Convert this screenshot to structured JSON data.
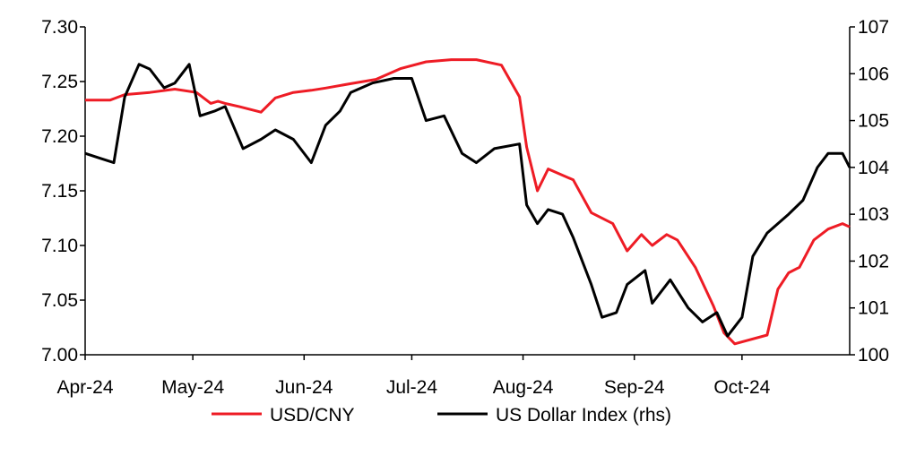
{
  "chart_data": {
    "type": "line",
    "title": "",
    "x_range": [
      "2024-04-01",
      "2024-10-31"
    ],
    "x_ticks": [
      {
        "label": "Apr-24",
        "date": "2024-04-01"
      },
      {
        "label": "May-24",
        "date": "2024-05-01"
      },
      {
        "label": "Jun-24",
        "date": "2024-06-01"
      },
      {
        "label": "Jul-24",
        "date": "2024-07-01"
      },
      {
        "label": "Aug-24",
        "date": "2024-08-01"
      },
      {
        "label": "Sep-24",
        "date": "2024-09-01"
      },
      {
        "label": "Oct-24",
        "date": "2024-10-01"
      }
    ],
    "y_left": {
      "range": [
        7.0,
        7.3
      ],
      "ticks": [
        "7.00",
        "7.05",
        "7.10",
        "7.15",
        "7.20",
        "7.25",
        "7.30"
      ]
    },
    "y_right": {
      "range": [
        100,
        107
      ],
      "ticks": [
        "100",
        "101",
        "102",
        "103",
        "104",
        "105",
        "106",
        "107"
      ]
    },
    "grid": false,
    "legend_position": "bottom",
    "series": [
      {
        "name": "USD/CNY",
        "axis": "left",
        "color": "#ee1c25",
        "points": [
          [
            "2024-04-01",
            7.233
          ],
          [
            "2024-04-08",
            7.233
          ],
          [
            "2024-04-12",
            7.238
          ],
          [
            "2024-04-19",
            7.24
          ],
          [
            "2024-04-26",
            7.243
          ],
          [
            "2024-05-02",
            7.24
          ],
          [
            "2024-05-06",
            7.23
          ],
          [
            "2024-05-08",
            7.232
          ],
          [
            "2024-05-10",
            7.23
          ],
          [
            "2024-05-14",
            7.227
          ],
          [
            "2024-05-20",
            7.222
          ],
          [
            "2024-05-24",
            7.235
          ],
          [
            "2024-05-29",
            7.24
          ],
          [
            "2024-06-03",
            7.242
          ],
          [
            "2024-06-07",
            7.244
          ],
          [
            "2024-06-14",
            7.248
          ],
          [
            "2024-06-21",
            7.252
          ],
          [
            "2024-06-28",
            7.262
          ],
          [
            "2024-07-05",
            7.268
          ],
          [
            "2024-07-12",
            7.27
          ],
          [
            "2024-07-19",
            7.27
          ],
          [
            "2024-07-26",
            7.265
          ],
          [
            "2024-07-31",
            7.236
          ],
          [
            "2024-08-02",
            7.19
          ],
          [
            "2024-08-05",
            7.15
          ],
          [
            "2024-08-08",
            7.17
          ],
          [
            "2024-08-15",
            7.16
          ],
          [
            "2024-08-20",
            7.13
          ],
          [
            "2024-08-26",
            7.12
          ],
          [
            "2024-08-30",
            7.095
          ],
          [
            "2024-09-03",
            7.11
          ],
          [
            "2024-09-06",
            7.1
          ],
          [
            "2024-09-10",
            7.11
          ],
          [
            "2024-09-13",
            7.105
          ],
          [
            "2024-09-18",
            7.08
          ],
          [
            "2024-09-23",
            7.045
          ],
          [
            "2024-09-26",
            7.02
          ],
          [
            "2024-09-29",
            7.01
          ],
          [
            "2024-10-08",
            7.018
          ],
          [
            "2024-10-11",
            7.06
          ],
          [
            "2024-10-14",
            7.075
          ],
          [
            "2024-10-17",
            7.08
          ],
          [
            "2024-10-21",
            7.105
          ],
          [
            "2024-10-25",
            7.115
          ],
          [
            "2024-10-29",
            7.12
          ],
          [
            "2024-10-31",
            7.117
          ]
        ]
      },
      {
        "name": "US Dollar Index (rhs)",
        "axis": "right",
        "color": "#000000",
        "points": [
          [
            "2024-04-01",
            104.3
          ],
          [
            "2024-04-05",
            104.2
          ],
          [
            "2024-04-09",
            104.1
          ],
          [
            "2024-04-12",
            105.5
          ],
          [
            "2024-04-16",
            106.2
          ],
          [
            "2024-04-19",
            106.1
          ],
          [
            "2024-04-23",
            105.7
          ],
          [
            "2024-04-26",
            105.8
          ],
          [
            "2024-04-30",
            106.2
          ],
          [
            "2024-05-03",
            105.1
          ],
          [
            "2024-05-07",
            105.2
          ],
          [
            "2024-05-10",
            105.3
          ],
          [
            "2024-05-15",
            104.4
          ],
          [
            "2024-05-20",
            104.6
          ],
          [
            "2024-05-24",
            104.8
          ],
          [
            "2024-05-29",
            104.6
          ],
          [
            "2024-06-03",
            104.1
          ],
          [
            "2024-06-07",
            104.9
          ],
          [
            "2024-06-11",
            105.2
          ],
          [
            "2024-06-14",
            105.6
          ],
          [
            "2024-06-20",
            105.8
          ],
          [
            "2024-06-26",
            105.9
          ],
          [
            "2024-07-01",
            105.9
          ],
          [
            "2024-07-05",
            105.0
          ],
          [
            "2024-07-10",
            105.1
          ],
          [
            "2024-07-15",
            104.3
          ],
          [
            "2024-07-19",
            104.1
          ],
          [
            "2024-07-24",
            104.4
          ],
          [
            "2024-07-31",
            104.5
          ],
          [
            "2024-08-02",
            103.2
          ],
          [
            "2024-08-05",
            102.8
          ],
          [
            "2024-08-08",
            103.1
          ],
          [
            "2024-08-12",
            103.0
          ],
          [
            "2024-08-15",
            102.5
          ],
          [
            "2024-08-20",
            101.5
          ],
          [
            "2024-08-23",
            100.8
          ],
          [
            "2024-08-27",
            100.9
          ],
          [
            "2024-08-30",
            101.5
          ],
          [
            "2024-09-04",
            101.8
          ],
          [
            "2024-09-06",
            101.1
          ],
          [
            "2024-09-11",
            101.6
          ],
          [
            "2024-09-16",
            101.0
          ],
          [
            "2024-09-20",
            100.7
          ],
          [
            "2024-09-24",
            100.9
          ],
          [
            "2024-09-27",
            100.4
          ],
          [
            "2024-10-01",
            100.8
          ],
          [
            "2024-10-04",
            102.1
          ],
          [
            "2024-10-08",
            102.6
          ],
          [
            "2024-10-14",
            103.0
          ],
          [
            "2024-10-18",
            103.3
          ],
          [
            "2024-10-22",
            104.0
          ],
          [
            "2024-10-25",
            104.3
          ],
          [
            "2024-10-29",
            104.3
          ],
          [
            "2024-10-31",
            104.0
          ]
        ]
      }
    ]
  }
}
